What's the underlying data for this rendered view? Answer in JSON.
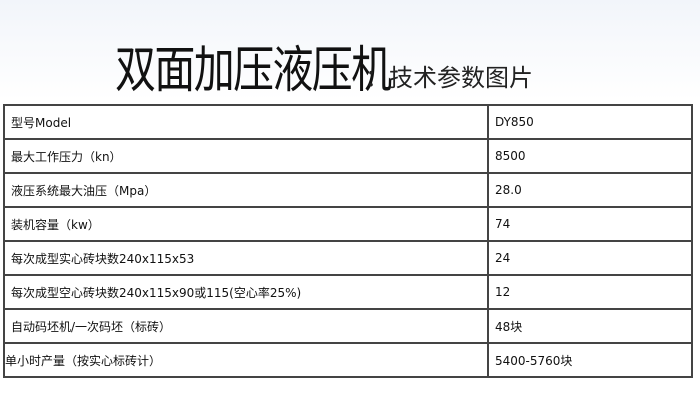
{
  "header": {
    "title": "双面加压液压机",
    "subtitle": "：技术参数图片"
  },
  "specs": [
    {
      "label": "型号Model",
      "value": "DY850"
    },
    {
      "label": "最大工作压力（kn）",
      "value": "8500"
    },
    {
      "label": "液压系统最大油压（Mpa）",
      "value": "28.0"
    },
    {
      "label": "装机容量（kw）",
      "value": "74"
    },
    {
      "label": "每次成型实心砖块数240x115x53",
      "value": "24"
    },
    {
      "label": "每次成型空心砖块数240x115x90或115(空心率25%)",
      "value": "12"
    },
    {
      "label": "自动码坯机/一次码坯（标砖）",
      "value": "48块"
    },
    {
      "label": "单小时产量（按实心标砖计）",
      "value": "5400-5760块"
    }
  ]
}
